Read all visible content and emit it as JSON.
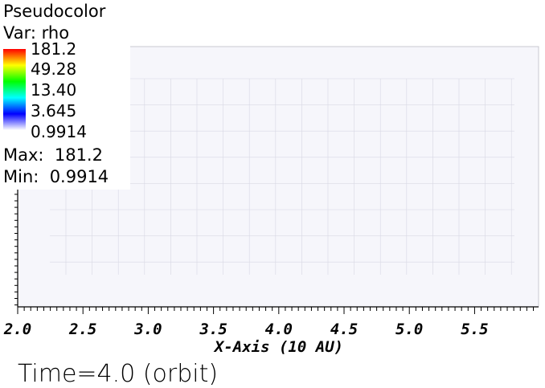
{
  "legend": {
    "title": "Pseudocolor",
    "var_label": "Var: rho",
    "ticks": [
      "181.2",
      "49.28",
      "13.40",
      "3.645",
      "0.9914"
    ],
    "max_label": "Max:  181.2",
    "min_label": "Min:  0.9914"
  },
  "time_label": "Time=4.0 (orbit)",
  "chart_data": {
    "type": "heatmap",
    "xlabel": "X-Axis (10 AU)",
    "xlim": [
      2.0,
      5.99
    ],
    "x_ticks": [
      "2.0",
      "2.5",
      "3.0",
      "3.5",
      "4.0",
      "4.5",
      "5.0",
      "5.5"
    ],
    "x_tick_values": [
      2.0,
      2.5,
      3.0,
      3.5,
      4.0,
      4.5,
      5.0,
      5.5
    ],
    "color_range": [
      0.9914,
      181.2
    ],
    "color_scale": "log",
    "colormap": [
      "#0000ff",
      "#00ffff",
      "#00ff00",
      "#ffff00",
      "#ff0000"
    ],
    "max": 181.2,
    "min": 0.9914
  }
}
